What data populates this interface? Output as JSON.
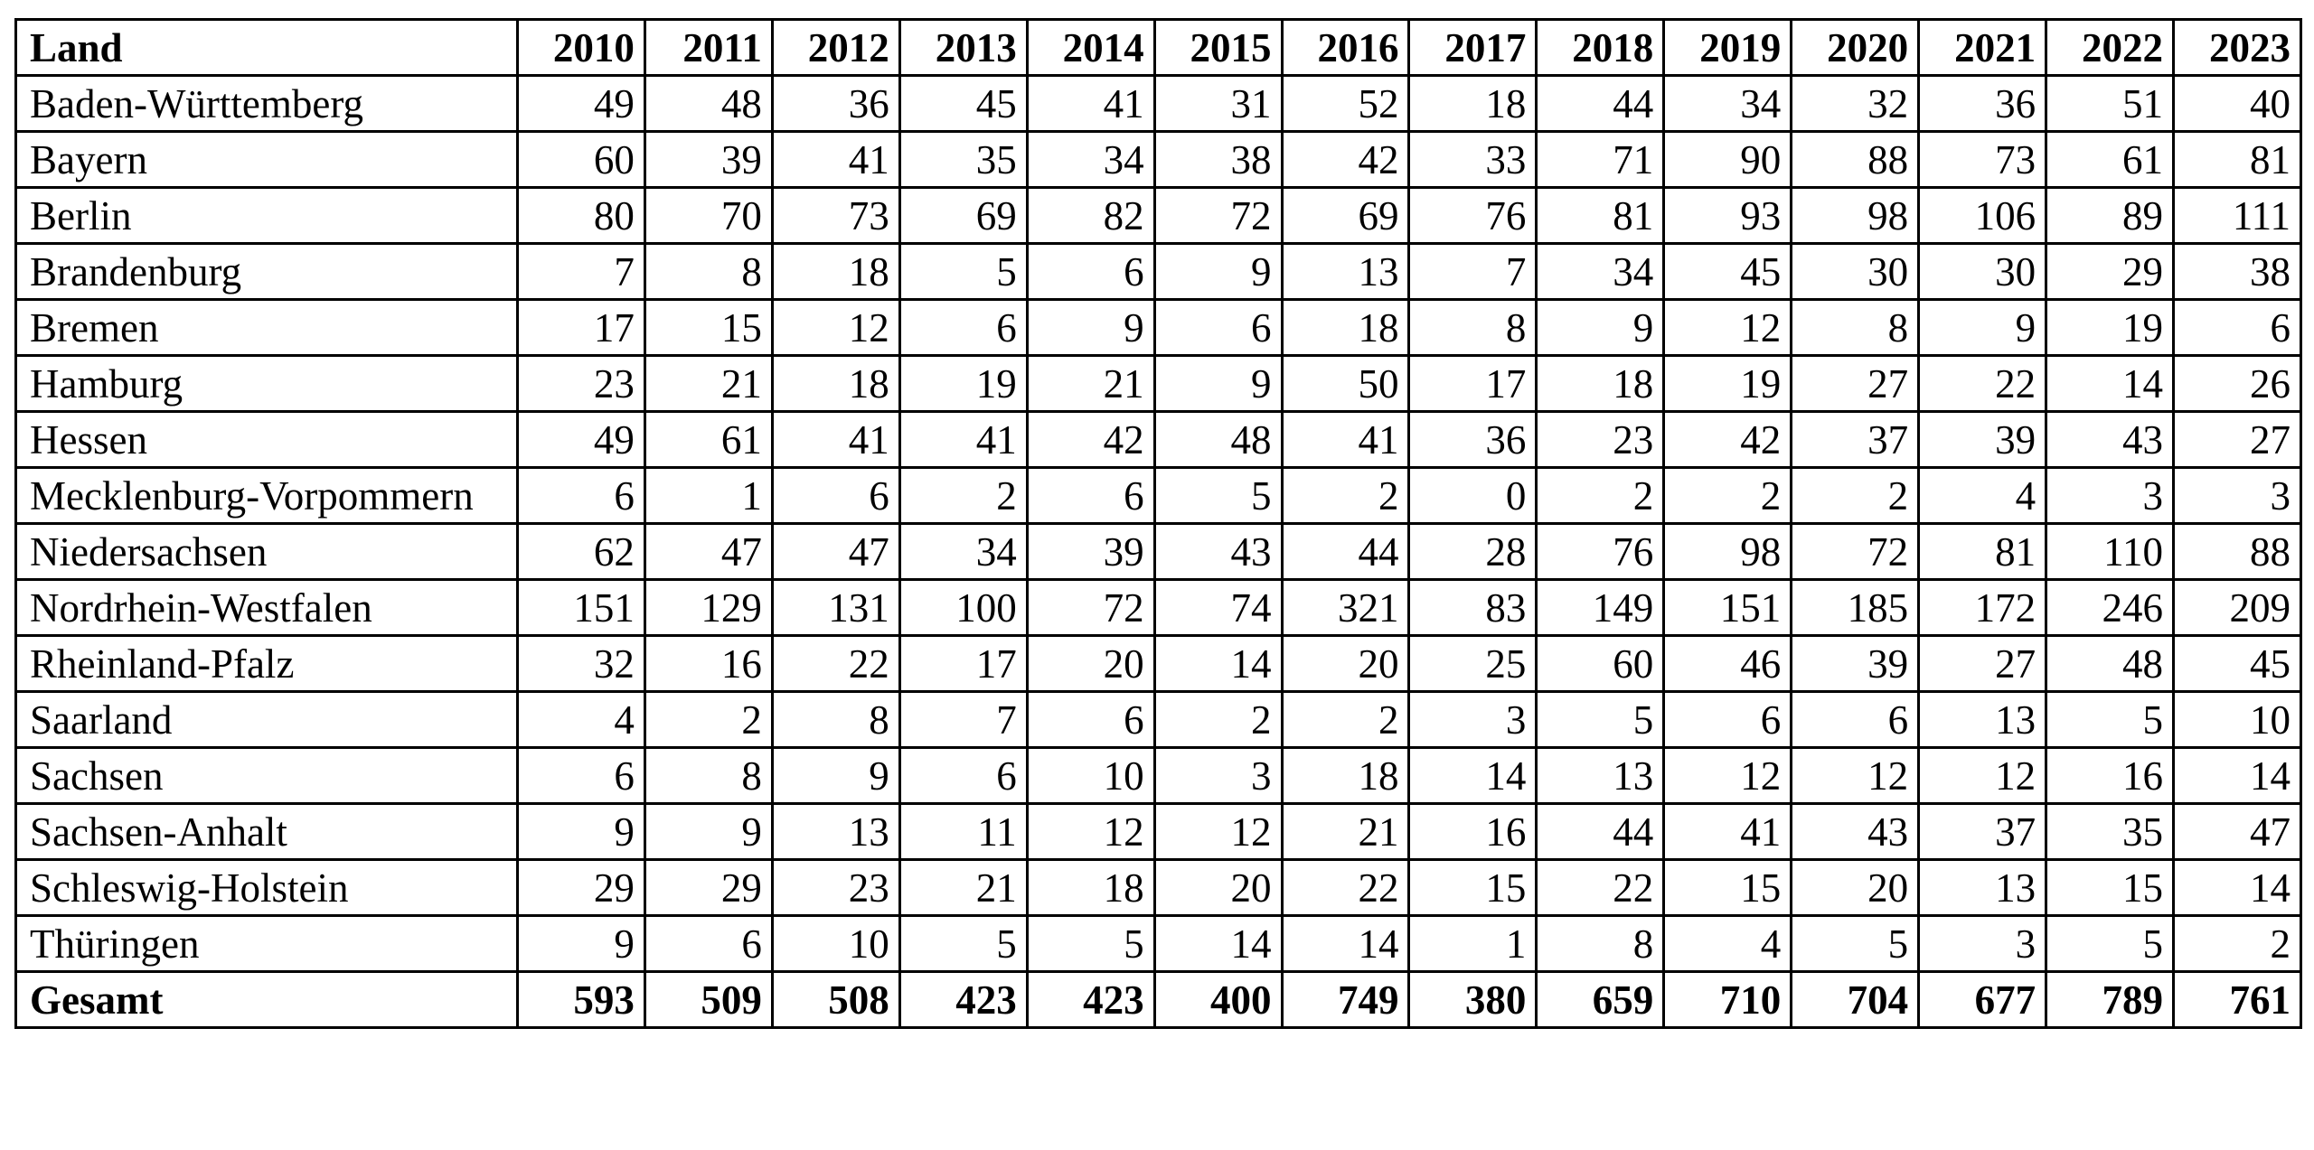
{
  "table": {
    "header": [
      "Land",
      "2010",
      "2011",
      "2012",
      "2013",
      "2014",
      "2015",
      "2016",
      "2017",
      "2018",
      "2019",
      "2020",
      "2021",
      "2022",
      "2023"
    ],
    "rows": [
      [
        "Baden-Württemberg",
        49,
        48,
        36,
        45,
        41,
        31,
        52,
        18,
        44,
        34,
        32,
        36,
        51,
        40
      ],
      [
        "Bayern",
        60,
        39,
        41,
        35,
        34,
        38,
        42,
        33,
        71,
        90,
        88,
        73,
        61,
        81
      ],
      [
        "Berlin",
        80,
        70,
        73,
        69,
        82,
        72,
        69,
        76,
        81,
        93,
        98,
        106,
        89,
        111
      ],
      [
        "Brandenburg",
        7,
        8,
        18,
        5,
        6,
        9,
        13,
        7,
        34,
        45,
        30,
        30,
        29,
        38
      ],
      [
        "Bremen",
        17,
        15,
        12,
        6,
        9,
        6,
        18,
        8,
        9,
        12,
        8,
        9,
        19,
        6
      ],
      [
        "Hamburg",
        23,
        21,
        18,
        19,
        21,
        9,
        50,
        17,
        18,
        19,
        27,
        22,
        14,
        26
      ],
      [
        "Hessen",
        49,
        61,
        41,
        41,
        42,
        48,
        41,
        36,
        23,
        42,
        37,
        39,
        43,
        27
      ],
      [
        "Mecklenburg-Vorpommern",
        6,
        1,
        6,
        2,
        6,
        5,
        2,
        0,
        2,
        2,
        2,
        4,
        3,
        3
      ],
      [
        "Niedersachsen",
        62,
        47,
        47,
        34,
        39,
        43,
        44,
        28,
        76,
        98,
        72,
        81,
        110,
        88
      ],
      [
        "Nordrhein-Westfalen",
        151,
        129,
        131,
        100,
        72,
        74,
        321,
        83,
        149,
        151,
        185,
        172,
        246,
        209
      ],
      [
        "Rheinland-Pfalz",
        32,
        16,
        22,
        17,
        20,
        14,
        20,
        25,
        60,
        46,
        39,
        27,
        48,
        45
      ],
      [
        "Saarland",
        4,
        2,
        8,
        7,
        6,
        2,
        2,
        3,
        5,
        6,
        6,
        13,
        5,
        10
      ],
      [
        "Sachsen",
        6,
        8,
        9,
        6,
        10,
        3,
        18,
        14,
        13,
        12,
        12,
        12,
        16,
        14
      ],
      [
        "Sachsen-Anhalt",
        9,
        9,
        13,
        11,
        12,
        12,
        21,
        16,
        44,
        41,
        43,
        37,
        35,
        47
      ],
      [
        "Schleswig-Holstein",
        29,
        29,
        23,
        21,
        18,
        20,
        22,
        15,
        22,
        15,
        20,
        13,
        15,
        14
      ],
      [
        "Thüringen",
        9,
        6,
        10,
        5,
        5,
        14,
        14,
        1,
        8,
        4,
        5,
        3,
        5,
        2
      ]
    ],
    "total": [
      "Gesamt",
      593,
      509,
      508,
      423,
      423,
      400,
      749,
      380,
      659,
      710,
      704,
      677,
      789,
      761
    ]
  }
}
